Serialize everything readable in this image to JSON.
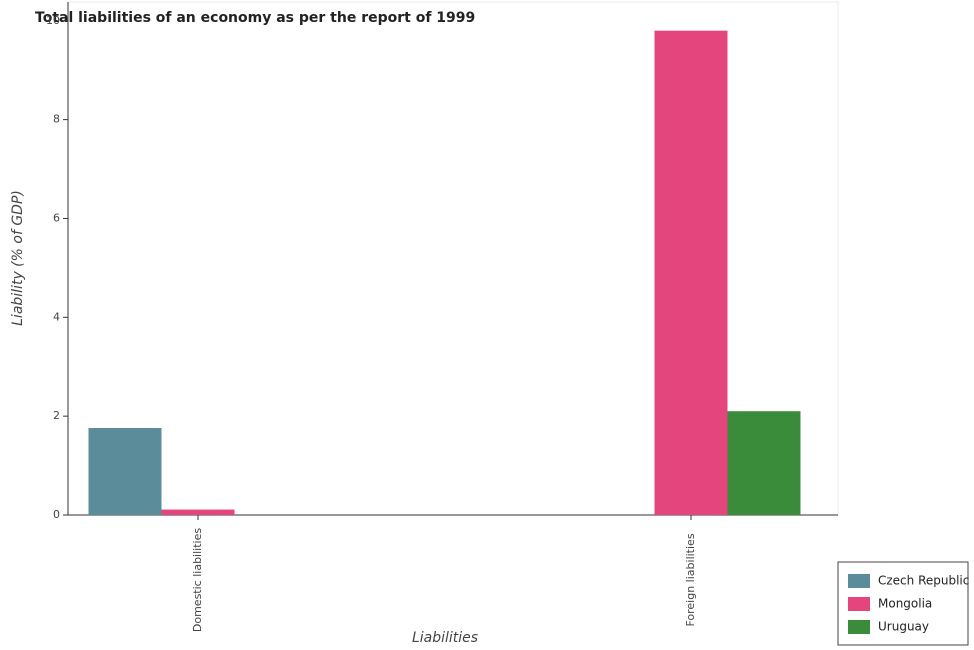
{
  "chart_data": {
    "type": "bar",
    "title": "Total liabilities of an economy as per the report of 1999",
    "x_label": "Liabilities",
    "y_label": "Liability (% of GDP)",
    "categories": [
      "Domestic liabilities",
      "Foreign liabilities"
    ],
    "series": [
      {
        "name": "Czech Republic",
        "color": "#5b8c9a",
        "values": [
          1.76,
          null
        ]
      },
      {
        "name": "Mongolia",
        "color": "#e4457c",
        "values": [
          0.11,
          9.8
        ]
      },
      {
        "name": "Uruguay",
        "color": "#3a8c3a",
        "values": [
          null,
          2.1
        ]
      }
    ],
    "ylim": [
      0,
      10.38
    ],
    "yticks": [
      0,
      2,
      4,
      6,
      8,
      10
    ],
    "legend": "bottom-right"
  }
}
